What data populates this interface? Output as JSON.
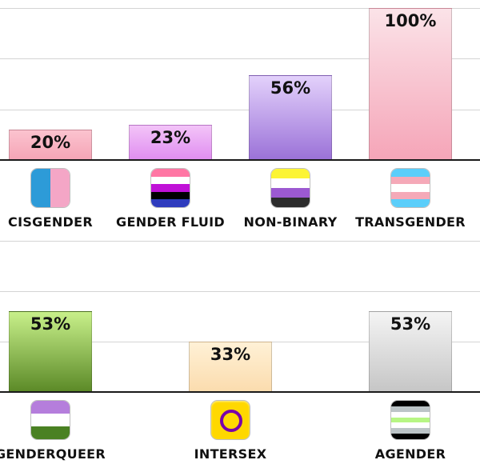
{
  "chart_data": [
    {
      "type": "bar",
      "categories": [
        "CISGENDER",
        "GENDER FLUID",
        "NON-BINARY",
        "TRANSGENDER"
      ],
      "values": [
        20,
        23,
        56,
        100
      ],
      "value_labels": [
        "20%",
        "23%",
        "56%",
        "100%"
      ],
      "ylim": [
        0,
        100
      ],
      "grid": true,
      "bar_colors": [
        [
          "#fbc3cf",
          "#f5a5b6"
        ],
        [
          "#f3c4f8",
          "#e08ef0"
        ],
        [
          "#e3d1fb",
          "#9b72d8"
        ],
        [
          "#fbe3e8",
          "#f5a5b8"
        ]
      ],
      "flags": [
        {
          "icon": "cisgender-flag-icon",
          "layout": "vertical",
          "colors": [
            "#2d9bd8",
            "#f4a6c6"
          ]
        },
        {
          "icon": "gender-fluid-flag-icon",
          "layout": "horizontal",
          "colors": [
            "#ff76a4",
            "#ffffff",
            "#c011d7",
            "#000000",
            "#2f3cbe"
          ]
        },
        {
          "icon": "non-binary-flag-icon",
          "layout": "horizontal",
          "colors": [
            "#fcf434",
            "#ffffff",
            "#9c59d1",
            "#2c2c2c"
          ]
        },
        {
          "icon": "transgender-flag-icon",
          "layout": "horizontal",
          "colors": [
            "#5bcefa",
            "#f5a9b8",
            "#ffffff",
            "#f5a9b8",
            "#5bcefa"
          ]
        }
      ]
    },
    {
      "type": "bar",
      "categories": [
        "GENDERQUEER",
        "INTERSEX",
        "AGENDER"
      ],
      "values": [
        53,
        33,
        53
      ],
      "value_labels": [
        "53%",
        "33%",
        "53%"
      ],
      "ylim": [
        0,
        100
      ],
      "grid": true,
      "bar_colors": [
        [
          "#c8f08a",
          "#5c8a28"
        ],
        [
          "#fff1d6",
          "#fbdcae"
        ],
        [
          "#f4f4f4",
          "#c6c6c6"
        ]
      ],
      "flags": [
        {
          "icon": "genderqueer-flag-icon",
          "layout": "horizontal",
          "colors": [
            "#b57edc",
            "#ffffff",
            "#4a8123"
          ]
        },
        {
          "icon": "intersex-flag-icon",
          "layout": "ring",
          "colors": [
            "#ffd800",
            "#7902aa"
          ]
        },
        {
          "icon": "agender-flag-icon",
          "layout": "horizontal",
          "colors": [
            "#000000",
            "#bcc4c7",
            "#ffffff",
            "#b7f684",
            "#ffffff",
            "#bcc4c7",
            "#000000"
          ]
        }
      ]
    }
  ]
}
